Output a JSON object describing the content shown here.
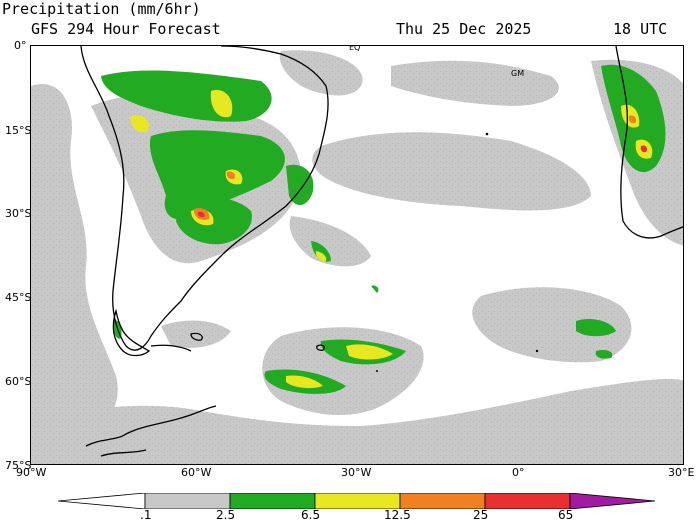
{
  "header": {
    "title_line1": "Precipitation (mm/6hr)",
    "title_line2": "GFS 294 Hour Forecast",
    "date": "Thu 25 Dec 2025",
    "time": "18 UTC"
  },
  "map": {
    "region": "South Atlantic / South America",
    "projection": "cylindrical",
    "lat_labels": [
      "0°",
      "15°S",
      "30°S",
      "45°S",
      "60°S",
      "75°S"
    ],
    "lon_labels": [
      "90°W",
      "60°W",
      "30°W",
      "0°",
      "30°E"
    ],
    "place_labels": [
      "EQ",
      "GM"
    ],
    "colors": {
      "gray": "#c8c8c8",
      "green": "#22aa22",
      "yellow": "#e8e820",
      "orange": "#f08020",
      "red": "#e83030",
      "purple": "#a01ca0",
      "coast": "#000000"
    }
  },
  "legend": {
    "ticks": [
      ".1",
      "2.5",
      "6.5",
      "12.5",
      "25",
      "65"
    ],
    "bins": [
      {
        "from": 0.1,
        "to": 2.5,
        "color": "#c8c8c8"
      },
      {
        "from": 2.5,
        "to": 6.5,
        "color": "#22aa22"
      },
      {
        "from": 6.5,
        "to": 12.5,
        "color": "#e8e820"
      },
      {
        "from": 12.5,
        "to": 25,
        "color": "#f08020"
      },
      {
        "from": 25,
        "to": 65,
        "color": "#e83030"
      },
      {
        "from": 65,
        "to": null,
        "color": "#a01ca0"
      }
    ],
    "units": "mm/6hr"
  }
}
